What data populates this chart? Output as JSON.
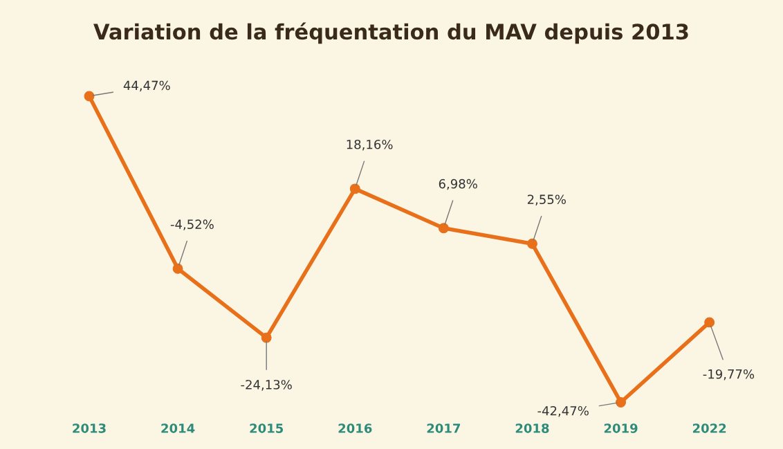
{
  "chart_data": {
    "type": "line",
    "title": "Variation de la fréquentation du MAV depuis 2013",
    "categories": [
      "2013",
      "2014",
      "2015",
      "2016",
      "2017",
      "2018",
      "2019",
      "2022"
    ],
    "series": [
      {
        "color": "#e8701a",
        "values": [
          44.47,
          -4.52,
          -24.13,
          18.16,
          6.98,
          2.55,
          -42.47,
          -19.77
        ],
        "value_labels": [
          "44,47%",
          "-4,52%",
          "-24,13%",
          "18,16%",
          "6,98%",
          "2,55%",
          "-42,47%",
          "-19,77%"
        ]
      }
    ],
    "marker": "circle",
    "line_style": "solid",
    "grid": false,
    "legend": false
  }
}
